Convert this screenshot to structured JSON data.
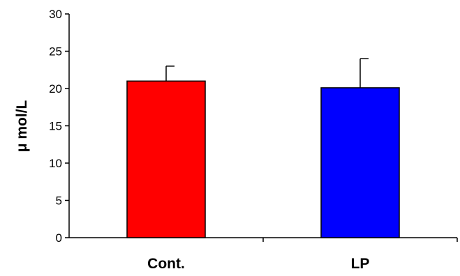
{
  "chart_data": {
    "type": "bar",
    "categories": [
      "Cont.",
      "LP"
    ],
    "values": [
      21,
      20.1
    ],
    "errors": [
      2,
      3.9
    ],
    "colors": [
      "#ff0000",
      "#0000ff"
    ],
    "ylabel": "μ mol/L",
    "ylim": [
      0,
      30
    ],
    "yticks": [
      "0",
      "5",
      "10",
      "15",
      "20",
      "25",
      "30"
    ],
    "grid": false,
    "legend": "none"
  }
}
